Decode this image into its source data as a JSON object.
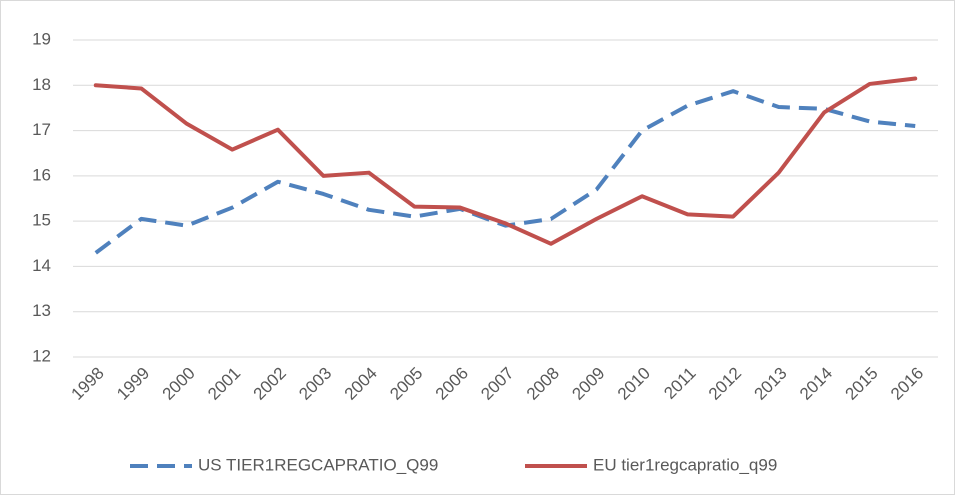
{
  "chart_data": {
    "type": "line",
    "categories": [
      "1998",
      "1999",
      "2000",
      "2001",
      "2002",
      "2003",
      "2004",
      "2005",
      "2006",
      "2007",
      "2008",
      "2009",
      "2010",
      "2011",
      "2012",
      "2013",
      "2014",
      "2015",
      "2016"
    ],
    "series": [
      {
        "name": "US TIER1REGCAPRATIO_Q99",
        "color": "#4f81bd",
        "dash": true,
        "values": [
          14.3,
          15.05,
          14.9,
          15.3,
          15.87,
          15.6,
          15.25,
          15.1,
          15.27,
          14.9,
          15.05,
          15.7,
          17.0,
          17.55,
          17.87,
          17.52,
          17.48,
          17.2,
          17.1
        ]
      },
      {
        "name": "EU tier1regcapratio_q99",
        "color": "#c0504d",
        "dash": false,
        "values": [
          18.0,
          17.93,
          17.15,
          16.58,
          17.02,
          16.0,
          16.07,
          15.32,
          15.3,
          14.95,
          14.5,
          15.05,
          15.55,
          15.15,
          15.1,
          16.07,
          17.4,
          18.03,
          18.15
        ]
      }
    ],
    "ylim": [
      12,
      19
    ],
    "yticks": [
      12,
      13,
      14,
      15,
      16,
      17,
      18,
      19
    ],
    "grid": true,
    "legend": "bottom"
  }
}
